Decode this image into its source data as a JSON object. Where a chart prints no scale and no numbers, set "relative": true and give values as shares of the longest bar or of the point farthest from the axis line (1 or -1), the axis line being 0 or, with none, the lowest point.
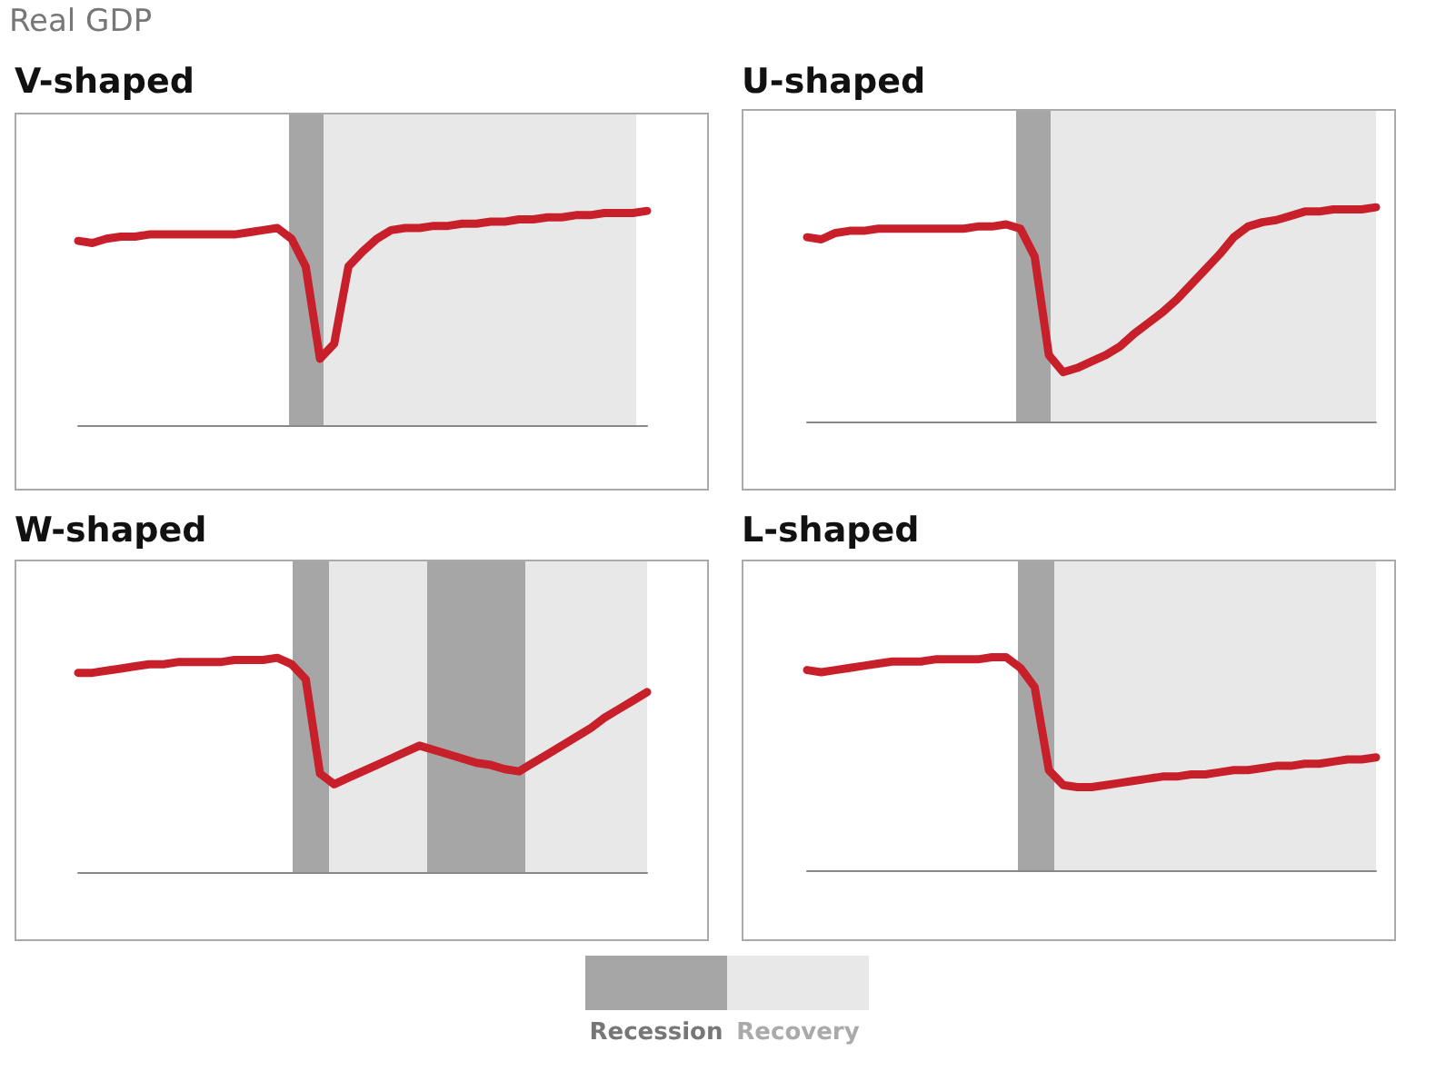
{
  "chart_data": [
    {
      "type": "line",
      "title": "V-shaped",
      "annotations": [
        "Real GDP"
      ],
      "relative": true,
      "categories": [
        null,
        null,
        null,
        null,
        null,
        null,
        null,
        null,
        null,
        null,
        null,
        null,
        null,
        null,
        null,
        null,
        null,
        null,
        null,
        null,
        null,
        null,
        null,
        null,
        null,
        null,
        null,
        null,
        null,
        null,
        null,
        null,
        null,
        null,
        null,
        null,
        null,
        null,
        null,
        null,
        null
      ],
      "series": [
        {
          "color": "#c8202a",
          "values": [
            0.86,
            0.85,
            0.87,
            0.88,
            0.88,
            0.89,
            0.89,
            0.89,
            0.89,
            0.89,
            0.89,
            0.89,
            0.9,
            0.91,
            0.92,
            0.87,
            0.74,
            0.31,
            0.38,
            0.74,
            0.81,
            0.87,
            0.91,
            0.92,
            0.92,
            0.93,
            0.93,
            0.94,
            0.94,
            0.95,
            0.95,
            0.96,
            0.96,
            0.97,
            0.97,
            0.98,
            0.98,
            0.99,
            0.99,
            0.99,
            1
          ]
        }
      ]
    },
    {
      "type": "line",
      "title": "U-shaped",
      "relative": true,
      "categories": [
        null,
        null,
        null,
        null,
        null,
        null,
        null,
        null,
        null,
        null,
        null,
        null,
        null,
        null,
        null,
        null,
        null,
        null,
        null,
        null,
        null,
        null,
        null,
        null,
        null,
        null,
        null,
        null,
        null,
        null,
        null,
        null,
        null,
        null,
        null,
        null,
        null,
        null,
        null,
        null,
        null
      ],
      "series": [
        {
          "color": "#c8202a",
          "values": [
            0.86,
            0.85,
            0.88,
            0.89,
            0.89,
            0.9,
            0.9,
            0.9,
            0.9,
            0.9,
            0.9,
            0.9,
            0.91,
            0.91,
            0.92,
            0.9,
            0.77,
            0.31,
            0.23,
            0.25,
            0.28,
            0.31,
            0.35,
            0.41,
            0.46,
            0.51,
            0.57,
            0.64,
            0.71,
            0.78,
            0.86,
            0.91,
            0.93,
            0.94,
            0.96,
            0.98,
            0.98,
            0.99,
            0.99,
            0.99,
            1
          ]
        }
      ]
    },
    {
      "type": "line",
      "title": "W-shaped",
      "relative": true,
      "categories": [
        null,
        null,
        null,
        null,
        null,
        null,
        null,
        null,
        null,
        null,
        null,
        null,
        null,
        null,
        null,
        null,
        null,
        null,
        null,
        null,
        null,
        null,
        null,
        null,
        null,
        null,
        null,
        null,
        null,
        null,
        null,
        null,
        null,
        null,
        null,
        null,
        null,
        null,
        null,
        null,
        null
      ],
      "series": [
        {
          "color": "#c8202a",
          "values": [
            0.93,
            0.93,
            0.94,
            0.95,
            0.96,
            0.97,
            0.97,
            0.98,
            0.98,
            0.98,
            0.98,
            0.99,
            0.99,
            0.99,
            1,
            0.97,
            0.9,
            0.46,
            0.41,
            0.44,
            0.47,
            0.5,
            0.53,
            0.56,
            0.59,
            0.57,
            0.55,
            0.53,
            0.51,
            0.5,
            0.48,
            0.47,
            0.51,
            0.55,
            0.59,
            0.63,
            0.67,
            0.72,
            0.76,
            0.8,
            0.84
          ]
        }
      ]
    },
    {
      "type": "line",
      "title": "L-shaped",
      "relative": true,
      "categories": [
        null,
        null,
        null,
        null,
        null,
        null,
        null,
        null,
        null,
        null,
        null,
        null,
        null,
        null,
        null,
        null,
        null,
        null,
        null,
        null,
        null,
        null,
        null,
        null,
        null,
        null,
        null,
        null,
        null,
        null,
        null,
        null,
        null,
        null,
        null,
        null,
        null,
        null,
        null,
        null,
        null
      ],
      "series": [
        {
          "color": "#c8202a",
          "values": [
            0.94,
            0.93,
            0.94,
            0.95,
            0.96,
            0.97,
            0.98,
            0.98,
            0.98,
            0.99,
            0.99,
            0.99,
            0.99,
            1,
            1,
            0.95,
            0.86,
            0.47,
            0.4,
            0.39,
            0.39,
            0.4,
            0.41,
            0.42,
            0.43,
            0.44,
            0.44,
            0.45,
            0.45,
            0.46,
            0.47,
            0.47,
            0.48,
            0.49,
            0.49,
            0.5,
            0.5,
            0.51,
            0.52,
            0.52,
            0.53
          ]
        }
      ]
    },
    {
      "type": "other",
      "annotations": [
        "Recession",
        "Recovery"
      ]
    }
  ]
}
